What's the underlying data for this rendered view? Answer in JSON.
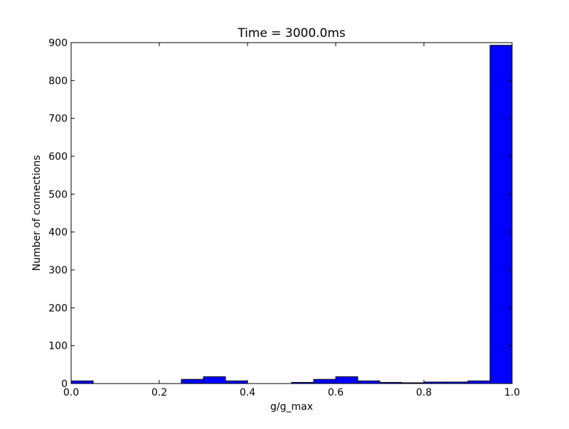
{
  "chart_data": {
    "type": "bar",
    "title": "Time = 3000.0ms",
    "xlabel": "g/g_max",
    "ylabel": "Number of connections",
    "xlim": [
      0.0,
      1.0
    ],
    "ylim": [
      0,
      900
    ],
    "xticks": [
      "0.0",
      "0.2",
      "0.4",
      "0.6",
      "0.8",
      "1.0"
    ],
    "yticks": [
      "0",
      "100",
      "200",
      "300",
      "400",
      "500",
      "600",
      "700",
      "800",
      "900"
    ],
    "bin_edges": [
      0.0,
      0.05,
      0.1,
      0.15,
      0.2,
      0.25,
      0.3,
      0.35,
      0.4,
      0.45,
      0.5,
      0.55,
      0.6,
      0.65,
      0.7,
      0.75,
      0.8,
      0.85,
      0.9,
      0.95,
      1.0
    ],
    "values": [
      7,
      0,
      0,
      0,
      0,
      11,
      18,
      7,
      0,
      0,
      3,
      11,
      18,
      7,
      3,
      2,
      4,
      4,
      7,
      893
    ],
    "bar_color": "#0000ff",
    "grid": false
  }
}
